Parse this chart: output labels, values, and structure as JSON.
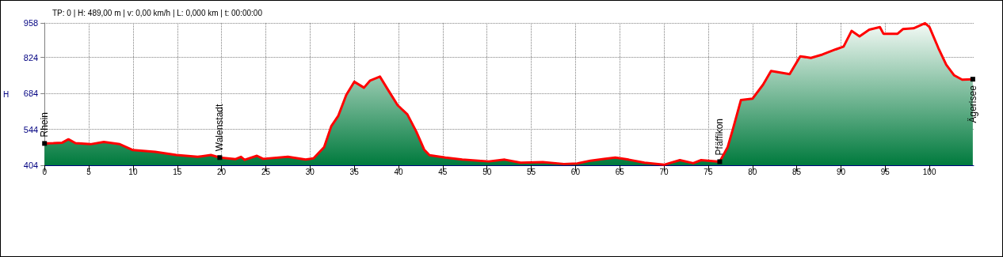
{
  "chart_data": {
    "type": "area",
    "title": "TP: 0 | H: 489,00 m | v: 0,00 km/h | L: 0,000 km | t: 00:00:00",
    "ylabel": "H",
    "x": [
      0,
      1,
      2,
      2.7,
      3.5,
      5.2,
      6.7,
      8.5,
      10,
      12.5,
      14.9,
      17.3,
      18.8,
      19.8,
      21.6,
      22.2,
      22.6,
      24,
      24.7,
      27.5,
      29.5,
      30.4,
      31.6,
      32.4,
      33.2,
      34.1,
      35,
      36.1,
      36.8,
      37.9,
      38.9,
      39.9,
      41,
      42,
      42.9,
      43.5,
      45.3,
      47.2,
      50.2,
      52,
      53.8,
      56.3,
      58.7,
      60.2,
      61.7,
      64.5,
      66,
      67.8,
      70,
      71.8,
      73.3,
      74.2,
      76.3,
      77.2,
      77.8,
      78.7,
      80,
      81.2,
      82.1,
      84.2,
      85.4,
      86.6,
      87.9,
      89.4,
      90.3,
      91.2,
      92.1,
      93.2,
      94.4,
      94.8,
      96.4,
      97,
      98.2,
      99.5,
      100,
      101,
      101.9,
      102.8,
      103.7,
      104.9
    ],
    "series": [
      {
        "color": "#ff0000",
        "values": [
          489,
          490,
          492,
          505,
          490,
          486,
          495,
          486,
          463,
          456,
          444,
          437,
          444,
          434,
          428,
          437,
          425,
          441,
          429,
          437,
          426,
          431,
          475,
          556,
          597,
          678,
          729,
          706,
          734,
          749,
          693,
          638,
          602,
          536,
          465,
          443,
          434,
          426,
          419,
          426,
          414,
          416,
          409,
          411,
          422,
          434,
          426,
          414,
          406,
          424,
          412,
          424,
          418,
          475,
          546,
          658,
          663,
          718,
          771,
          759,
          828,
          822,
          835,
          855,
          866,
          927,
          906,
          932,
          942,
          916,
          916,
          934,
          937,
          957,
          942,
          861,
          795,
          754,
          737,
          739
        ]
      }
    ],
    "xlim": [
      0,
      105
    ],
    "ylim": [
      404,
      958
    ],
    "xticks": [
      0,
      5,
      10,
      15,
      20,
      25,
      30,
      35,
      40,
      45,
      50,
      55,
      60,
      65,
      70,
      75,
      80,
      85,
      90,
      95,
      100
    ],
    "yticks": [
      404,
      544,
      684,
      824,
      958
    ],
    "grid": true,
    "marker": "none",
    "line_style": "solid",
    "annotations": [
      {
        "text": "Rhein",
        "x": 0,
        "y": 489
      },
      {
        "text": "Walenstadt",
        "x": 19.8,
        "y": 434
      },
      {
        "text": "Pfäffikon",
        "x": 76.3,
        "y": 418
      },
      {
        "text": "Ägerisee",
        "x": 104.9,
        "y": 739
      }
    ]
  }
}
